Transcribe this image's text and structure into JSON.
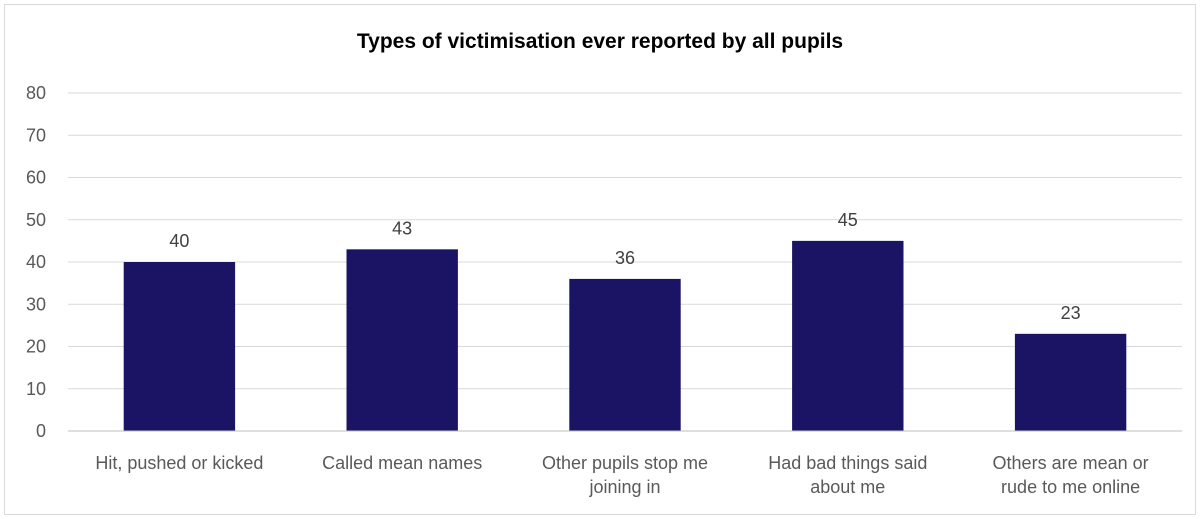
{
  "chart_data": {
    "type": "bar",
    "title": "Types of victimisation ever reported by all pupils",
    "xlabel": "",
    "ylabel": "",
    "categories": [
      [
        "Hit, pushed or kicked"
      ],
      [
        "Called mean names"
      ],
      [
        "Other pupils stop me",
        "joining in"
      ],
      [
        "Had bad things said",
        "about me"
      ],
      [
        "Others are mean or",
        "rude to me online"
      ]
    ],
    "values": [
      40,
      43,
      36,
      45,
      23
    ],
    "ylim": [
      0,
      80
    ],
    "yticks": [
      0,
      10,
      20,
      30,
      40,
      50,
      60,
      70,
      80
    ],
    "grid": true,
    "legend": "none",
    "bar_color": "#1b1464",
    "data_labels": true
  }
}
